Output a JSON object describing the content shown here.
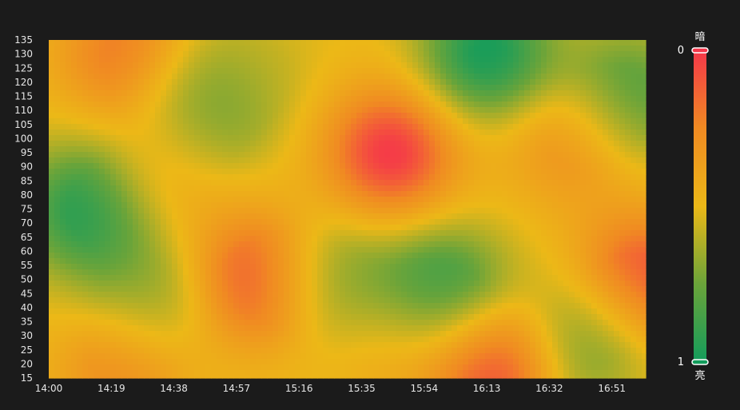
{
  "chart_data": {
    "type": "heatmap",
    "title": "",
    "xlabel": "",
    "ylabel": "",
    "x_ticks": [
      "14:00",
      "14:19",
      "14:38",
      "14:57",
      "15:16",
      "15:35",
      "15:54",
      "16:13",
      "16:32",
      "16:51"
    ],
    "y_ticks": [
      15,
      20,
      25,
      30,
      35,
      40,
      45,
      50,
      55,
      60,
      65,
      70,
      75,
      80,
      85,
      90,
      95,
      100,
      105,
      110,
      115,
      120,
      125,
      130,
      135
    ],
    "ylim": [
      15,
      135
    ],
    "color_scale": {
      "min": 0,
      "max": 1,
      "min_label": "0",
      "max_label": "1",
      "top_caption": "暗",
      "bottom_caption": "亮",
      "colors": [
        "#f5364a",
        "#f08a22",
        "#ecb817",
        "#6aa43a",
        "#139c5c"
      ]
    },
    "hotspots": [
      {
        "x": "15:44",
        "y": 95,
        "value": 0.0
      },
      {
        "x": "15:05",
        "y": 50,
        "value": 0.0
      },
      {
        "x": "16:14",
        "y": 20,
        "value": 0.0
      },
      {
        "x": "17:00",
        "y": 50,
        "value": 0.05
      },
      {
        "x": "14:22",
        "y": 130,
        "value": 0.2
      },
      {
        "x": "16:39",
        "y": 100,
        "value": 0.25
      },
      {
        "x": "14:23",
        "y": 20,
        "value": 0.2
      },
      {
        "x": "14:36",
        "y": 90,
        "value": 0.35
      },
      {
        "x": "15:44",
        "y": 25,
        "value": 0.4
      },
      {
        "x": "14:11",
        "y": 75,
        "value": 0.95
      },
      {
        "x": "14:47",
        "y": 110,
        "value": 0.8
      },
      {
        "x": "16:13",
        "y": 130,
        "value": 1.0
      },
      {
        "x": "16:00",
        "y": 45,
        "value": 0.95
      },
      {
        "x": "16:55",
        "y": 115,
        "value": 0.85
      },
      {
        "x": "15:23",
        "y": 50,
        "value": 0.8
      },
      {
        "x": "14:30",
        "y": 40,
        "value": 0.75
      },
      {
        "x": "16:44",
        "y": 30,
        "value": 0.8
      },
      {
        "x": "15:05",
        "y": 125,
        "value": 0.55
      }
    ]
  }
}
